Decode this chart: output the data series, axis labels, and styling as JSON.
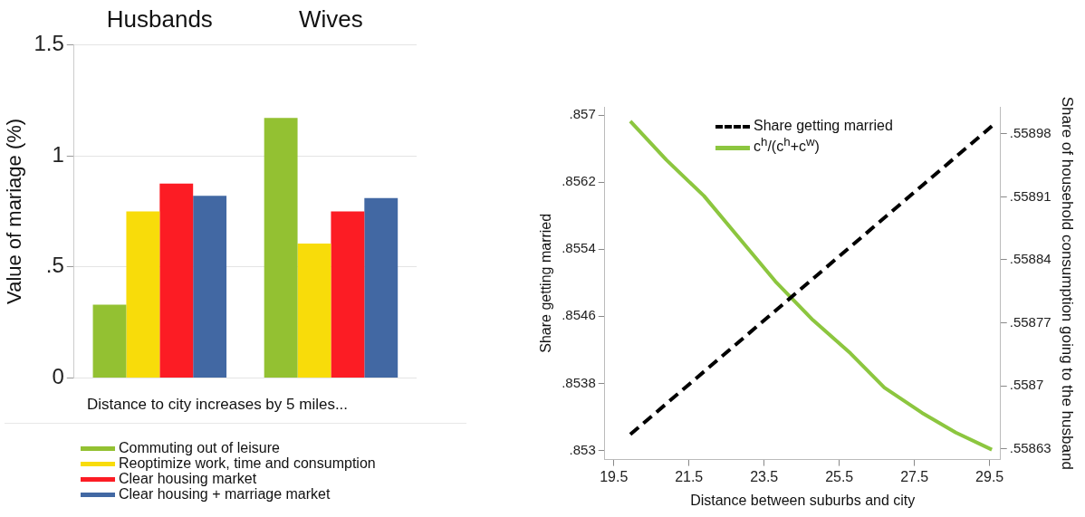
{
  "chart_data": [
    {
      "type": "bar",
      "categories": [
        "Husbands",
        "Wives"
      ],
      "ylabel": "Value of mariage (%)",
      "xlabel": "Distance to city increases by 5 miles...",
      "ylim": [
        0,
        1.5
      ],
      "yticks": [
        0,
        {
          "value": 0.5,
          "label": ".5"
        },
        1,
        1.5
      ],
      "grid": "y",
      "legend": "bottom",
      "series": [
        {
          "name": "Commuting out of leisure",
          "color": "#93c132",
          "values": [
            0.33,
            1.17
          ]
        },
        {
          "name": "Reoptimize work, time and consumption",
          "color": "#f8dc0a",
          "values": [
            0.75,
            0.605
          ]
        },
        {
          "name": "Clear housing market",
          "color": "#fc1c24",
          "values": [
            0.875,
            0.75
          ]
        },
        {
          "name": "Clear housing + marriage market",
          "color": "#4268a3",
          "values": [
            0.82,
            0.81
          ]
        }
      ]
    },
    {
      "type": "line",
      "xlabel": "Distance between suburbs and city",
      "ylabel": "Share getting married",
      "y2label": "Share of household consumption going to the husband",
      "xlim": [
        19.26,
        29.79
      ],
      "xticks": [
        19.5,
        21.5,
        23.5,
        25.5,
        27.5,
        29.5
      ],
      "ylim": [
        0.85289,
        0.8571
      ],
      "yticks": [
        {
          "value": 0.853,
          "label": ".853"
        },
        {
          "value": 0.8538,
          "label": ".8538"
        },
        {
          "value": 0.8546,
          "label": ".8546"
        },
        {
          "value": 0.8554,
          "label": ".8554"
        },
        {
          "value": 0.8562,
          "label": ".8562"
        },
        {
          "value": 0.857,
          "label": ".857"
        }
      ],
      "y2lim": [
        0.558618,
        0.55901
      ],
      "y2ticks": [
        {
          "value": 0.55863,
          "label": ".55863"
        },
        {
          "value": 0.5587,
          "label": ".5587"
        },
        {
          "value": 0.55877,
          "label": ".55877"
        },
        {
          "value": 0.55884,
          "label": ".55884"
        },
        {
          "value": 0.55891,
          "label": ".55891"
        },
        {
          "value": 0.55898,
          "label": ".55898"
        }
      ],
      "grid": false,
      "legend": "top",
      "marker": "none",
      "series": [
        {
          "name": "Share getting married",
          "color": "#000000",
          "line_style": "dashed",
          "x": [
            19.94,
            29.56
          ],
          "values": [
            0.85319,
            0.85687
          ]
        },
        {
          "name": "c$^{h}$/(c$^{h}$+c$^{w}$)",
          "color": "#8cc63f",
          "axis": "y2",
          "line_style": "solid",
          "x": [
            19.94,
            20.9,
            21.9,
            23.8,
            24.8,
            25.8,
            26.7,
            27.7,
            28.6,
            29.56
          ],
          "values": [
            0.558994,
            0.558951,
            0.558911,
            0.558816,
            0.558773,
            0.558736,
            0.558698,
            0.55867,
            0.558648,
            0.558629
          ]
        }
      ]
    }
  ]
}
